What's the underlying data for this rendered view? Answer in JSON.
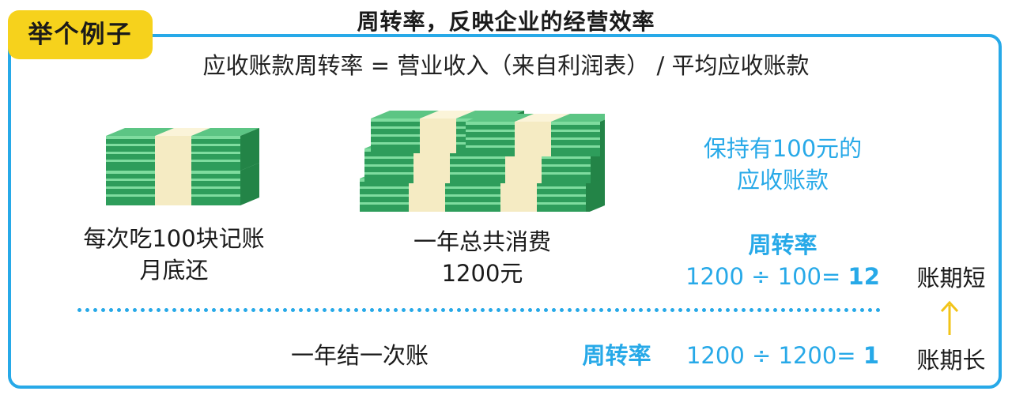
{
  "title": "周转率，反映企业的经营效率",
  "badge": "举个例子",
  "formula": "应收账款周转率 = 营业收入（来自利润表） / 平均应收账款",
  "left": {
    "line1": "每次吃100块记账",
    "line2": "月底还"
  },
  "middle": {
    "line1": "一年总共消费",
    "line2": "1200元"
  },
  "right": {
    "hold_line1": "保持有100元的",
    "hold_line2": "应收账款",
    "rate_label": "周转率",
    "calc1_expr": "1200 ÷ 100= ",
    "calc1_result": "12"
  },
  "bottom": {
    "label": "一年结一次账",
    "rate_label": "周转率",
    "calc2_expr": "1200 ÷ 1200= ",
    "calc2_result": "1"
  },
  "side": {
    "short": "账期短",
    "long": "账期长",
    "arrow_icon": "arrow-up-icon"
  },
  "colors": {
    "accent_blue": "#27a9e8",
    "badge_yellow": "#f6d21c",
    "money_green": "#3cb878",
    "arrow_yellow": "#f2c418"
  }
}
